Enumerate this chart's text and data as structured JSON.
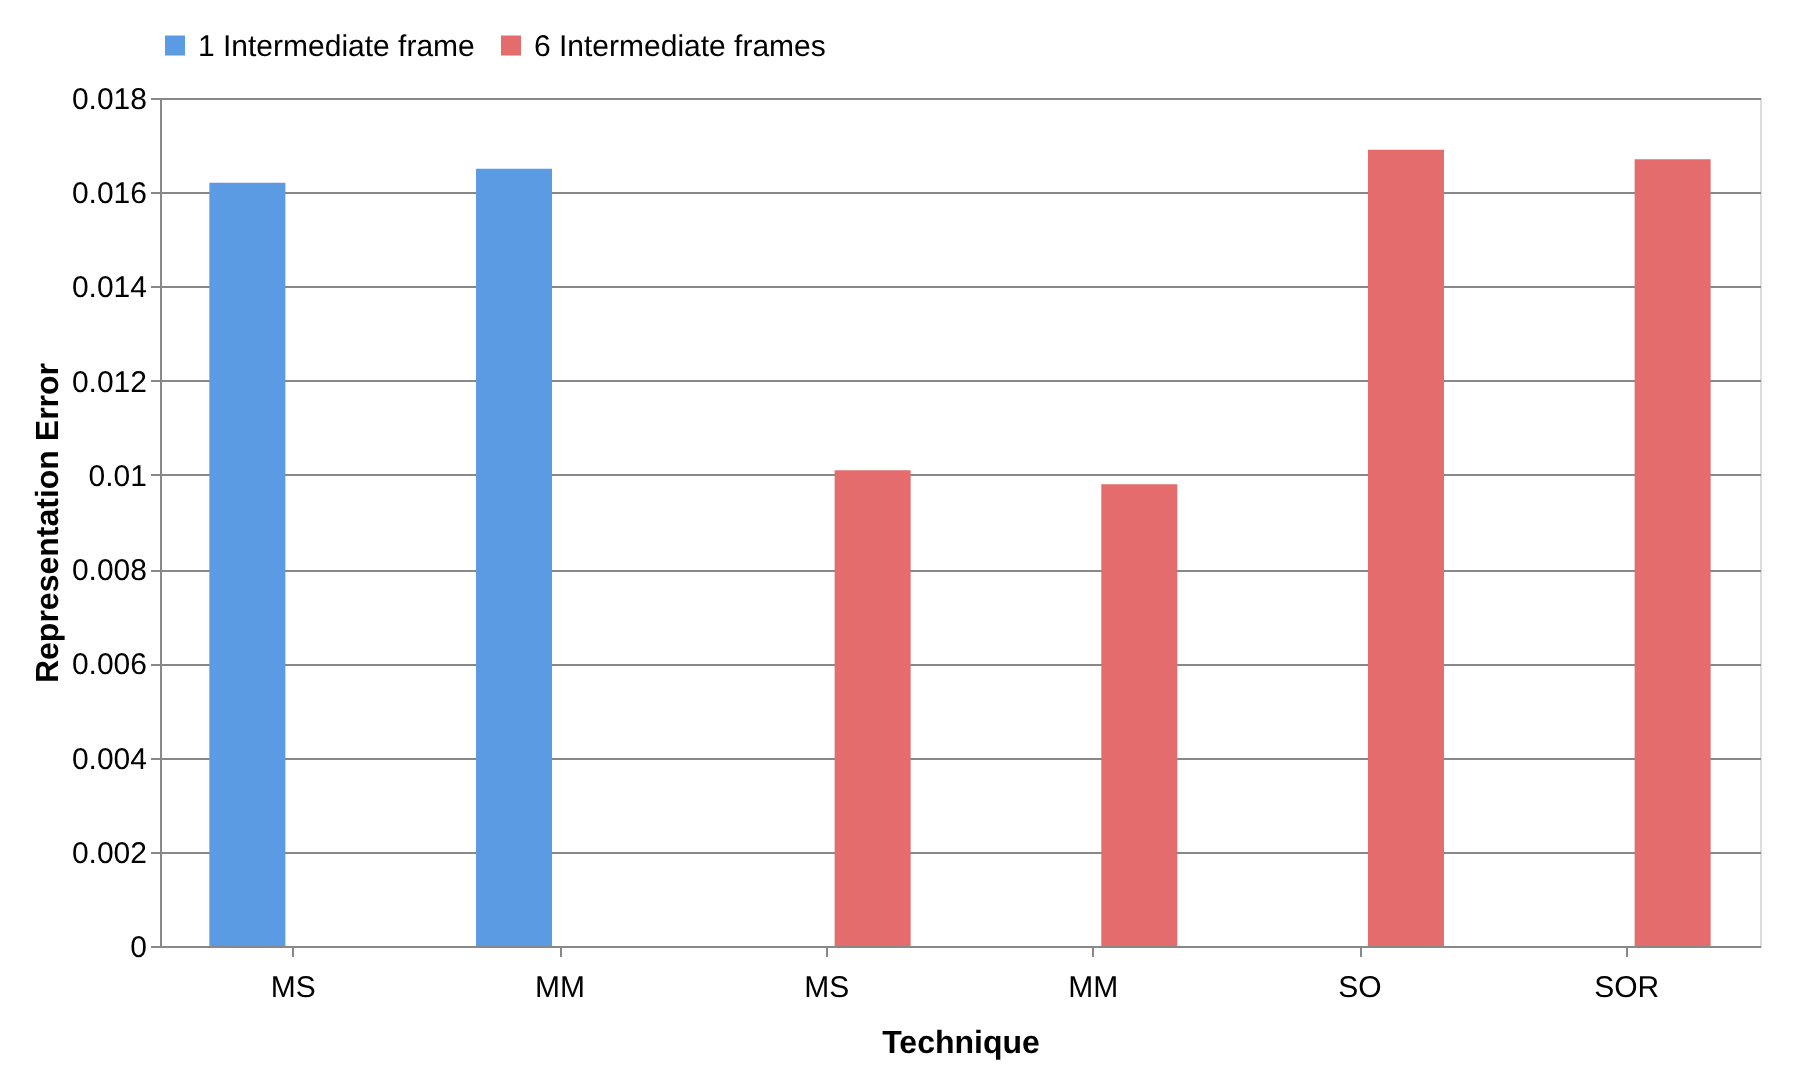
{
  "chart_data": {
    "type": "bar",
    "xlabel": "Technique",
    "ylabel": "Representation Error",
    "categories": [
      "MS",
      "MM",
      "MS",
      "MM",
      "SO",
      "SOR"
    ],
    "series": [
      {
        "name": "1 Intermediate frame",
        "color": "#5b9be3",
        "values": [
          0.0162,
          0.0165,
          null,
          null,
          null,
          null
        ]
      },
      {
        "name": "6 Intermediate frames",
        "color": "#e56c6c",
        "values": [
          null,
          null,
          0.0101,
          0.0098,
          0.0169,
          0.0167
        ]
      }
    ],
    "ylim": [
      0,
      0.018
    ],
    "yticks": [
      0,
      0.002,
      0.004,
      0.006,
      0.008,
      0.01,
      0.012,
      0.014,
      0.016,
      0.018
    ],
    "grid": "y",
    "legend": "top"
  }
}
